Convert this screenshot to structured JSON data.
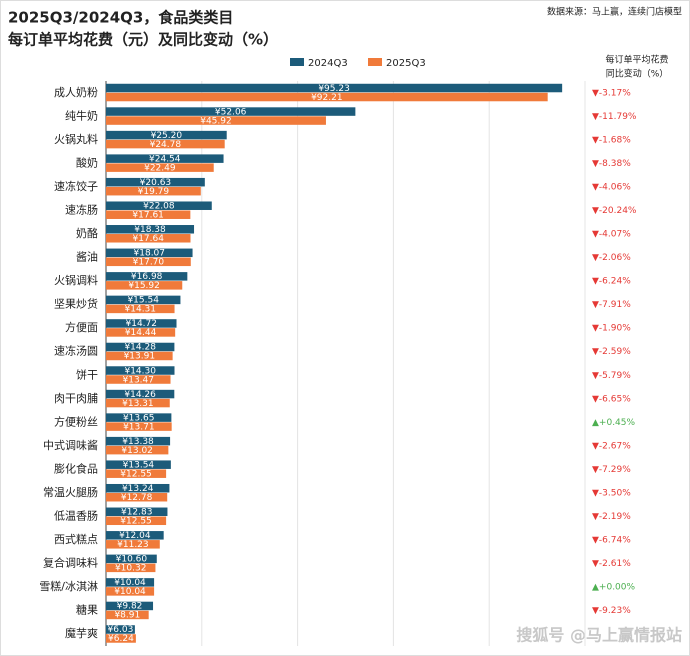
{
  "chart_data": {
    "type": "bar",
    "orientation": "horizontal",
    "title": "2025Q3/2024Q3，食品类类目",
    "subtitle": "每订单平均花费（元）及同比变动（%）",
    "source": "数据来源：马上赢，连续门店模型",
    "change_header": [
      "每订单平均花费",
      "同比变动（%）"
    ],
    "watermark": "搜狐号 @马上赢情报站",
    "categories": [
      "成人奶粉",
      "纯牛奶",
      "火锅丸料",
      "酸奶",
      "速冻饺子",
      "速冻肠",
      "奶酪",
      "酱油",
      "火锅调料",
      "坚果炒货",
      "方便面",
      "速冻汤圆",
      "饼干",
      "肉干肉脯",
      "方便粉丝",
      "中式调味酱",
      "膨化食品",
      "常温火腿肠",
      "低温香肠",
      "西式糕点",
      "复合调味料",
      "雪糕/冰淇淋",
      "糖果",
      "魔芋爽"
    ],
    "series": [
      {
        "name": "2024Q3",
        "color": "#1c5b7a",
        "values": [
          95.23,
          52.06,
          25.2,
          24.54,
          20.63,
          22.08,
          18.38,
          18.07,
          16.98,
          15.54,
          14.72,
          14.28,
          14.3,
          14.26,
          13.65,
          13.38,
          13.54,
          13.24,
          12.83,
          12.04,
          10.6,
          10.04,
          9.82,
          6.03
        ],
        "value_labels": [
          "¥95.23",
          "¥52.06",
          "¥25.20",
          "¥24.54",
          "¥20.63",
          "¥22.08",
          "¥18.38",
          "¥18.07",
          "¥16.98",
          "¥15.54",
          "¥14.72",
          "¥14.28",
          "¥14.30",
          "¥14.26",
          "¥13.65",
          "¥13.38",
          "¥13.54",
          "¥13.24",
          "¥12.83",
          "¥12.04",
          "¥10.60",
          "¥10.04",
          "¥9.82",
          "¥6.03"
        ]
      },
      {
        "name": "2025Q3",
        "color": "#f07a3a",
        "values": [
          92.21,
          45.92,
          24.78,
          22.49,
          19.79,
          17.61,
          17.64,
          17.7,
          15.92,
          14.31,
          14.44,
          13.91,
          13.47,
          13.31,
          13.71,
          13.02,
          12.55,
          12.78,
          12.55,
          11.23,
          10.32,
          10.04,
          8.91,
          6.24
        ],
        "value_labels": [
          "¥92.21",
          "¥45.92",
          "¥24.78",
          "¥22.49",
          "¥19.79",
          "¥17.61",
          "¥17.64",
          "¥17.70",
          "¥15.92",
          "¥14.31",
          "¥14.44",
          "¥13.91",
          "¥13.47",
          "¥13.31",
          "¥13.71",
          "¥13.02",
          "¥12.55",
          "¥12.78",
          "¥12.55",
          "¥11.23",
          "¥10.32",
          "¥10.04",
          "¥8.91",
          "¥6.24"
        ]
      }
    ],
    "changes": [
      -3.17,
      -11.79,
      -1.68,
      -8.38,
      -4.06,
      -20.24,
      -4.07,
      -2.06,
      -6.24,
      -7.91,
      -1.9,
      -2.59,
      -5.79,
      -6.65,
      0.45,
      -2.67,
      -7.29,
      -3.5,
      -2.19,
      -6.74,
      -2.61,
      0.0,
      -9.23,
      null
    ],
    "change_labels": [
      "▼-3.17%",
      "▼-11.79%",
      "▼-1.68%",
      "▼-8.38%",
      "▼-4.06%",
      "▼-20.24%",
      "▼-4.07%",
      "▼-2.06%",
      "▼-6.24%",
      "▼-7.91%",
      "▼-1.90%",
      "▼-2.59%",
      "▼-5.79%",
      "▼-6.65%",
      "▲+0.45%",
      "▼-2.67%",
      "▼-7.29%",
      "▼-3.50%",
      "▼-2.19%",
      "▼-6.74%",
      "▼-2.61%",
      "▲+0.00%",
      "▼-9.23%",
      null
    ],
    "up_color": "#4caf50",
    "down_color": "#e53935",
    "xlim": [
      0,
      100
    ],
    "grid_x": [
      20,
      40,
      60,
      80
    ]
  }
}
